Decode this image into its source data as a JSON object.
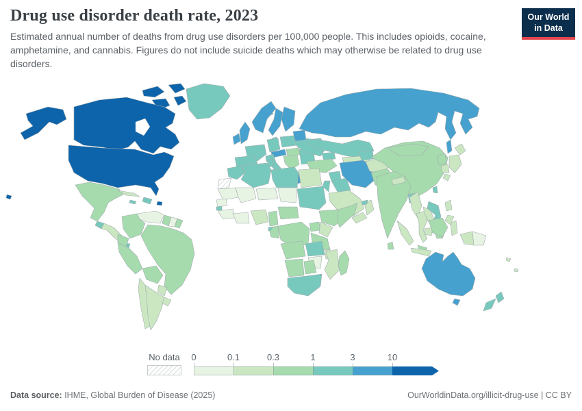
{
  "header": {
    "title": "Drug use disorder death rate, 2023",
    "subtitle": "Estimated annual number of deaths from drug use disorders per 100,000 people. This includes opioids, cocaine, amphetamine, and cannabis. Figures do not include suicide deaths which may otherwise be related to drug use disorders.",
    "logo_line1": "Our World",
    "logo_line2": "in Data",
    "logo_bg": "#0b2e4d",
    "logo_accent": "#e0454b"
  },
  "legend": {
    "no_data_label": "No data",
    "bins": [
      {
        "label": "0",
        "color": "#e8f4e3"
      },
      {
        "label": "0.1",
        "color": "#cbe7c2"
      },
      {
        "label": "0.3",
        "color": "#a6dbae"
      },
      {
        "label": "1",
        "color": "#78c9bd"
      },
      {
        "label": "3",
        "color": "#46a1ce"
      },
      {
        "label": "10",
        "color": "#0d64ab"
      }
    ]
  },
  "footer": {
    "source_prefix": "Data source:",
    "source_text": " IHME, Global Burden of Disease (2025)",
    "link_text": "OurWorldinData.org/illicit-drug-use | CC BY"
  },
  "chart_data": {
    "type": "choropleth",
    "title": "Drug use disorder death rate, 2023",
    "unit": "deaths per 100,000 people",
    "legend_thresholds": [
      0,
      0.1,
      0.3,
      1,
      3,
      10
    ],
    "bin_colors": {
      "0": "#e8f4e3",
      "0.1": "#cbe7c2",
      "0.3": "#a6dbae",
      "1": "#78c9bd",
      "3": "#46a1ce",
      "10": "#0d64ab",
      "no-data": "hatch"
    },
    "country_bins": {
      "canada": "10",
      "united-states": "10",
      "greenland": "1",
      "puerto-rico": "10",
      "hawaii": "10",
      "mexico": "0.3",
      "guatemala": "1",
      "central-america": "0.1",
      "panama": "1",
      "cuba": "0.1",
      "jamaica": "1",
      "hispaniola": "1",
      "venezuela": "0",
      "colombia": "0.3",
      "guyana": "0.3",
      "suriname": "0",
      "french-guiana": "0.3",
      "ecuador": "0.3",
      "peru": "0.3",
      "brazil": "0.3",
      "bolivia": "0.3",
      "paraguay": "0.1",
      "chile": "0.1",
      "argentina": "0.1",
      "uruguay": "0.1",
      "iceland": "3",
      "united-kingdom": "3",
      "ireland": "3",
      "norway": "3",
      "sweden": "3",
      "finland": "3",
      "baltics": "3",
      "denmark": "1",
      "germany": "1",
      "poland": "1",
      "france": "1",
      "spain": "1",
      "austria": "3",
      "hungary": "0.3",
      "italy": "1",
      "balkans": "0.3",
      "albania": "1",
      "greece": "3",
      "romania-bulgaria": "1",
      "ukraine": "1",
      "russia": "3",
      "kazakhstan": "1",
      "caucasus": "1",
      "uzbekistan-turkmenistan": "0.1",
      "kyrgyzstan-tajikistan": "1",
      "turkey": "0.3",
      "syria": "1",
      "iraq": "1",
      "jordan-israel": "1",
      "iran": "3",
      "saudi-arabia": "0.1",
      "yemen": "0.1",
      "oman": "0.1",
      "uae": "1",
      "afghanistan": "0.1",
      "pakistan": "0.3",
      "india": "0.3",
      "sri-lanka": "0.3",
      "nepal": "0.1",
      "bangladesh": "1",
      "china": "0.3",
      "mongolia": "0.3",
      "north-korea": "0.3",
      "south-korea": "0.1",
      "japan": "0.1",
      "taiwan": "1",
      "myanmar": "0.1",
      "thailand": "0.1",
      "laos": "0.1",
      "vietnam": "1",
      "cambodia": "0.1",
      "malaysia": "0.3",
      "philippines": "0.1",
      "indonesia": "0.1",
      "borneo": "0.3",
      "west-papua": "0.1",
      "papua-new-guinea": "0",
      "pacific-islands": "0.1",
      "australia": "3",
      "new-zealand": "1",
      "morocco": "1",
      "western-sahara": "no-data",
      "algeria": "1",
      "tunisia": "1",
      "libya": "1",
      "egypt": "0.1",
      "mauritania": "0",
      "mali": "0",
      "niger": "0",
      "chad": "0",
      "sudan": "1",
      "senegal": "0",
      "gambia-guinea-bissau": "1",
      "guinea-region": "0",
      "ivory-coast-ghana": "0",
      "nigeria": "0.1",
      "cameroon": "0.3",
      "central-african-republic": "0.3",
      "ethiopia": "0.3",
      "somalia": "0.3",
      "uganda": "0.3",
      "kenya": "0.1",
      "tanzania": "0.3",
      "drc": "0.3",
      "eq-guinea": "1",
      "gabon": "0.3",
      "angola": "0.3",
      "zambia": "1",
      "malawi": "0.1",
      "mozambique": "0.1",
      "zimbabwe": "0",
      "namibia": "0.3",
      "botswana": "0.3",
      "south-africa": "1",
      "madagascar": "0.3"
    }
  }
}
